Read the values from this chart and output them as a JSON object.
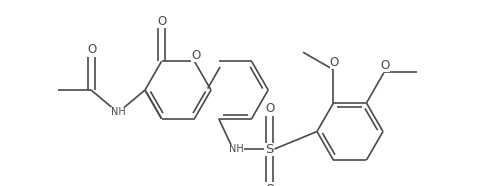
{
  "background_color": "#ffffff",
  "line_color": "#4a4a4a",
  "line_width": 1.2,
  "font_size": 7.5,
  "figsize": [
    4.96,
    1.86
  ],
  "dpi": 100,
  "xlim": [
    0,
    496
  ],
  "ylim": [
    0,
    186
  ]
}
